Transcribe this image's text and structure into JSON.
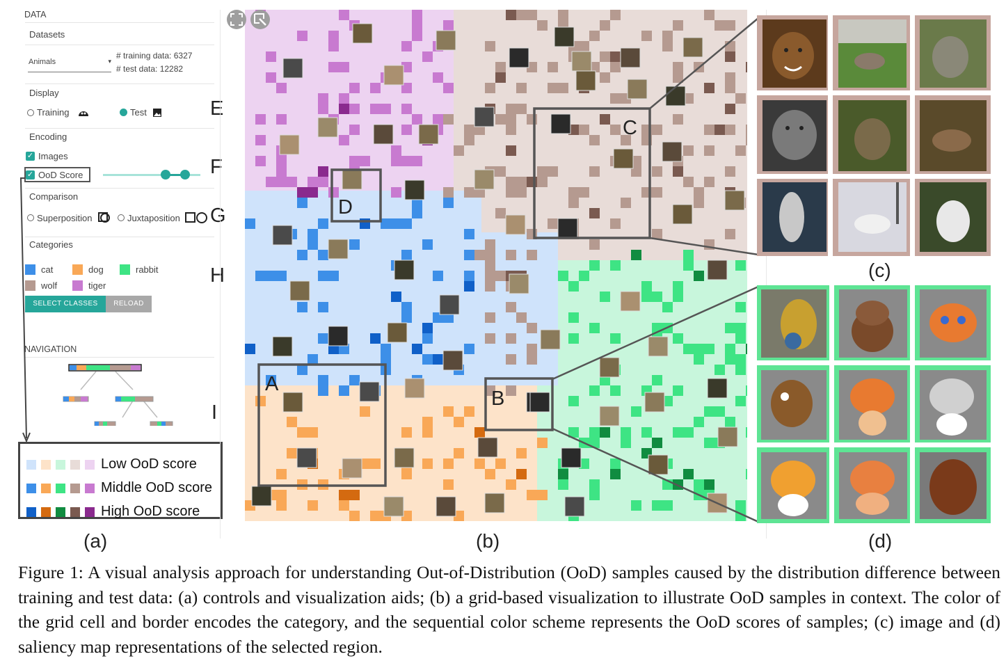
{
  "panel": {
    "data_title": "DATA",
    "datasets_label": "Datasets",
    "dataset_value": "Animals",
    "training_count": "# training data: 6327",
    "test_count": "# test data: 12282",
    "display_label": "Display",
    "display_training": "Training",
    "display_test": "Test",
    "encoding_label": "Encoding",
    "images_label": "Images",
    "ood_label": "OoD Score",
    "comparison_label": "Comparison",
    "superposition": "Superposition",
    "juxtaposition": "Juxtaposition",
    "categories_label": "Categories",
    "categories": [
      {
        "name": "cat",
        "color": "#3d8fe8"
      },
      {
        "name": "dog",
        "color": "#f9a857"
      },
      {
        "name": "rabbit",
        "color": "#3ee484"
      },
      {
        "name": "wolf",
        "color": "#b59a90"
      },
      {
        "name": "tiger",
        "color": "#c87ad0"
      }
    ],
    "select_classes": "SELECT CLASSES",
    "reload": "RELOAD",
    "navigation_title": "NAVIGATION"
  },
  "letters": {
    "E": "E",
    "F": "F",
    "G": "G",
    "H": "H",
    "I": "I",
    "A": "A",
    "B": "B",
    "C": "C",
    "D": "D"
  },
  "legend": {
    "low": "Low OoD score",
    "middle": "Middle OoD score",
    "high": "High OoD score",
    "colors": {
      "low": [
        "#cfe3fb",
        "#fde3c9",
        "#c8f6dc",
        "#e8dcd8",
        "#edd3f1"
      ],
      "middle": [
        "#3d8fe8",
        "#f9a857",
        "#3ee484",
        "#b59a90",
        "#c87ad0"
      ],
      "high": [
        "#1060c8",
        "#d46a10",
        "#108c40",
        "#7a5a50",
        "#8a2a8e"
      ]
    }
  },
  "sublabels": {
    "a": "(a)",
    "b": "(b)",
    "c": "(c)",
    "d": "(d)"
  },
  "caption": "Figure 1:  A visual analysis approach for understanding Out-of-Distribution (OoD) samples caused by the distribution difference between training and test data: (a) controls and visualization aids; (b) a grid-based visualization to illustrate OoD samples in context. The color of the grid cell and border encodes the category, and the sequential color scheme represents the OoD scores of samples; (c) image and (d) saliency map representations of the selected region."
}
